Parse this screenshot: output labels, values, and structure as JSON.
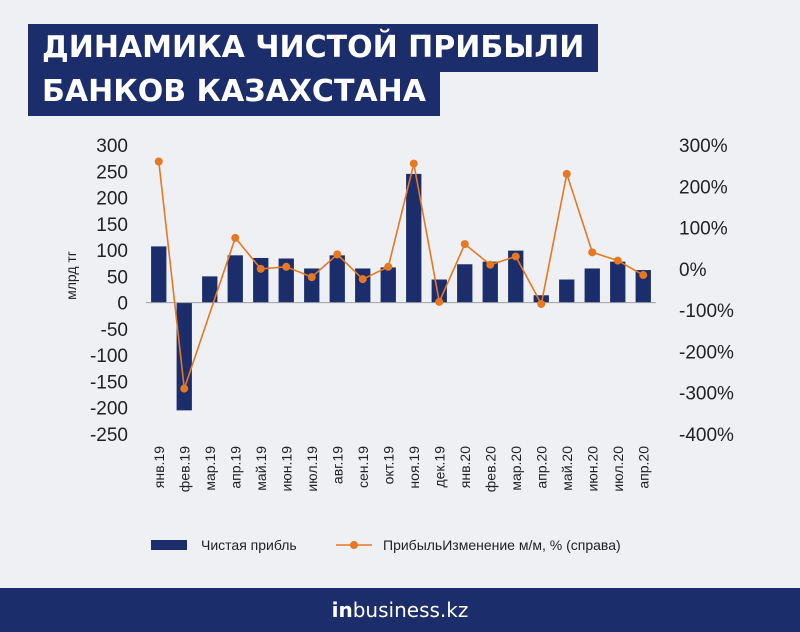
{
  "title": {
    "line1": "ДИНАМИКА ЧИСТОЙ ПРИБЫЛИ",
    "line2": "БАНКОВ КАЗАХСТАНА"
  },
  "footer": {
    "logo_prefix": "in",
    "logo_rest": "business.kz"
  },
  "colors": {
    "bar": "#1b2d6b",
    "line": "#e87722",
    "title_bg": "#1b2d6b"
  },
  "chart_data": {
    "type": "bar",
    "categories": [
      "янв.19",
      "фев.19",
      "мар.19",
      "апр.19",
      "май.19",
      "июн.19",
      "июл.19",
      "авг.19",
      "сен.19",
      "окт.19",
      "ноя.19",
      "дек.19",
      "янв.20",
      "фев.20",
      "мар.20",
      "апр.20",
      "май.20",
      "июн.20",
      "июл.20",
      "апр.20"
    ],
    "series": [
      {
        "name": "Чистая прибль",
        "type": "bar",
        "axis": "left",
        "values": [
          107,
          -205,
          50,
          90,
          85,
          84,
          65,
          90,
          65,
          67,
          245,
          44,
          73,
          78,
          99,
          14,
          44,
          65,
          78,
          62
        ]
      },
      {
        "name": "ПрибыльИзменение м/м, % (справа)",
        "type": "line",
        "axis": "right",
        "values": [
          260,
          -290,
          null,
          75,
          0,
          5,
          -20,
          35,
          -25,
          5,
          255,
          -80,
          60,
          10,
          30,
          -85,
          230,
          40,
          20,
          -15
        ]
      }
    ],
    "ylabel": "млрд тг",
    "ylim": [
      -250,
      300
    ],
    "yticks": [
      300,
      250,
      200,
      150,
      100,
      50,
      0,
      -50,
      -100,
      -150,
      -200,
      -250
    ],
    "y2lim": [
      -400,
      300
    ],
    "y2ticks": [
      "300%",
      "200%",
      "100%",
      "0%",
      "-100%",
      "-200%",
      "-300%",
      "-400%"
    ],
    "grid": false,
    "legend": "bottom"
  }
}
